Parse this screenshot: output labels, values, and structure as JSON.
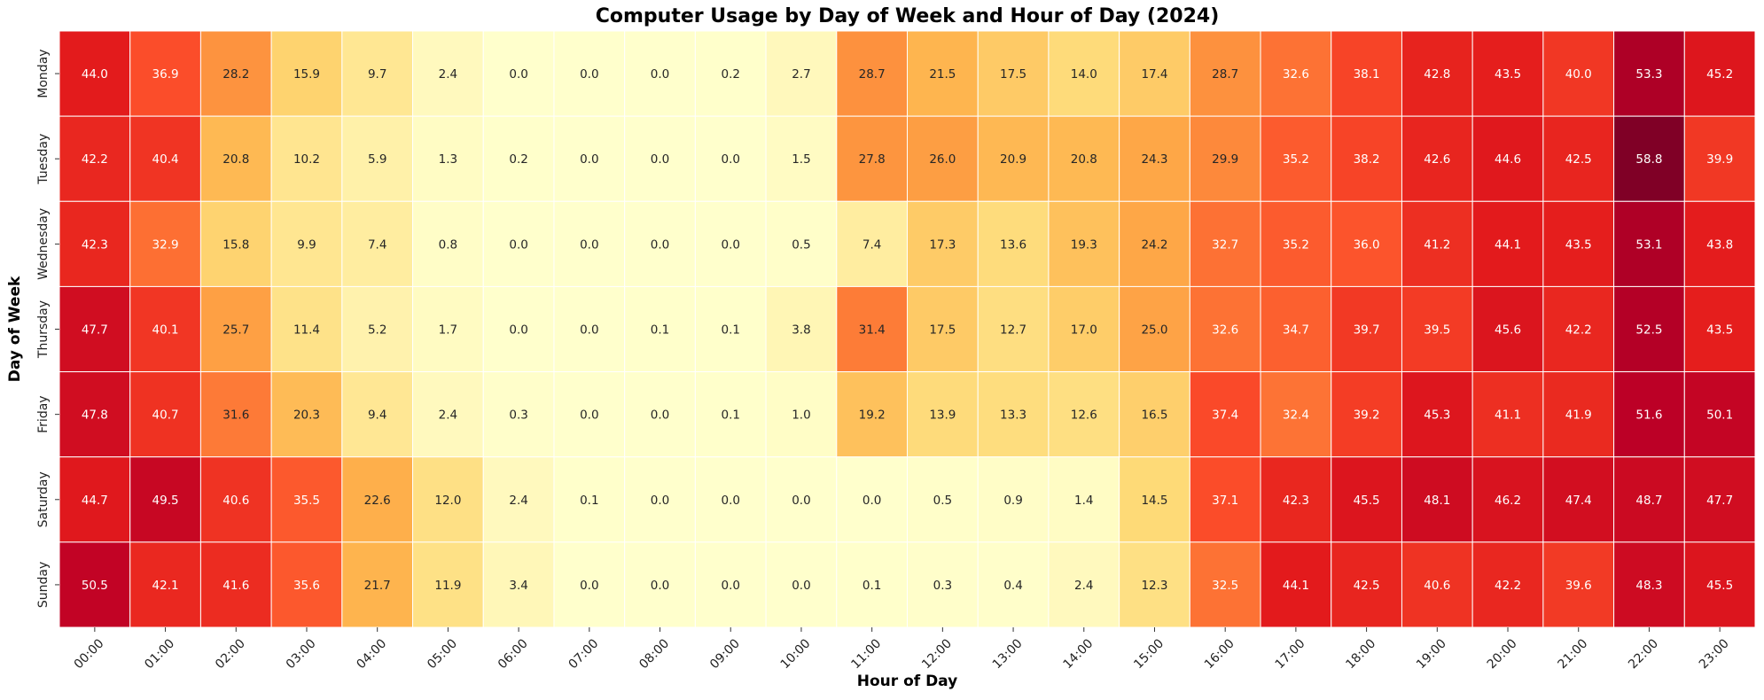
{
  "chart_data": {
    "type": "heatmap",
    "title": "Computer Usage by Day of Week and Hour of Day (2024)",
    "xlabel": "Hour of Day",
    "ylabel": "Day of Week",
    "x_categories": [
      "00:00",
      "01:00",
      "02:00",
      "03:00",
      "04:00",
      "05:00",
      "06:00",
      "07:00",
      "08:00",
      "09:00",
      "10:00",
      "11:00",
      "12:00",
      "13:00",
      "14:00",
      "15:00",
      "16:00",
      "17:00",
      "18:00",
      "19:00",
      "20:00",
      "21:00",
      "22:00",
      "23:00"
    ],
    "y_categories": [
      "Monday",
      "Tuesday",
      "Wednesday",
      "Thursday",
      "Friday",
      "Saturday",
      "Sunday"
    ],
    "values": [
      [
        44.0,
        36.9,
        28.2,
        15.9,
        9.7,
        2.4,
        0.0,
        0.0,
        0.0,
        0.2,
        2.7,
        28.7,
        21.5,
        17.5,
        14.0,
        17.4,
        28.7,
        32.6,
        38.1,
        42.8,
        43.5,
        40.0,
        53.3,
        45.2
      ],
      [
        42.2,
        40.4,
        20.8,
        10.2,
        5.9,
        1.3,
        0.2,
        0.0,
        0.0,
        0.0,
        1.5,
        27.8,
        26.0,
        20.9,
        20.8,
        24.3,
        29.9,
        35.2,
        38.2,
        42.6,
        44.6,
        42.5,
        58.8,
        39.9
      ],
      [
        42.3,
        32.9,
        15.8,
        9.9,
        7.4,
        0.8,
        0.0,
        0.0,
        0.0,
        0.0,
        0.5,
        7.4,
        17.3,
        13.6,
        19.3,
        24.2,
        32.7,
        35.2,
        36.0,
        41.2,
        44.1,
        43.5,
        53.1,
        43.8
      ],
      [
        47.7,
        40.1,
        25.7,
        11.4,
        5.2,
        1.7,
        0.0,
        0.0,
        0.1,
        0.1,
        3.8,
        31.4,
        17.5,
        12.7,
        17.0,
        25.0,
        32.6,
        34.7,
        39.7,
        39.5,
        45.6,
        42.2,
        52.5,
        43.5
      ],
      [
        47.8,
        40.7,
        31.6,
        20.3,
        9.4,
        2.4,
        0.3,
        0.0,
        0.0,
        0.1,
        1.0,
        19.2,
        13.9,
        13.3,
        12.6,
        16.5,
        37.4,
        32.4,
        39.2,
        45.3,
        41.1,
        41.9,
        51.6,
        50.1
      ],
      [
        44.7,
        49.5,
        40.6,
        35.5,
        22.6,
        12.0,
        2.4,
        0.1,
        0.0,
        0.0,
        0.0,
        0.0,
        0.5,
        0.9,
        1.4,
        14.5,
        37.1,
        42.3,
        45.5,
        48.1,
        46.2,
        47.4,
        48.7,
        47.7
      ],
      [
        50.5,
        42.1,
        41.6,
        35.6,
        21.7,
        11.9,
        3.4,
        0.0,
        0.0,
        0.0,
        0.0,
        0.1,
        0.3,
        0.4,
        2.4,
        12.3,
        32.5,
        44.1,
        42.5,
        40.6,
        42.2,
        39.6,
        48.3,
        45.5
      ]
    ],
    "value_format": "one decimal",
    "colormap": "YlOrRd",
    "color_range": [
      0,
      58.8
    ],
    "annotations": true,
    "grid": false,
    "legend": "none"
  }
}
